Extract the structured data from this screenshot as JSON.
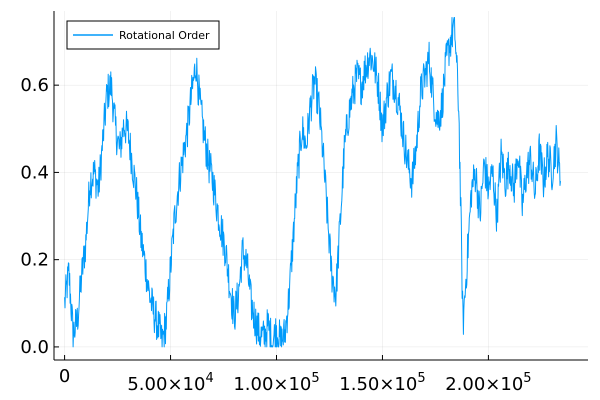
{
  "chart_data": {
    "type": "line",
    "title": "",
    "xlabel": "",
    "ylabel": "",
    "xlim": [
      -5000,
      247000
    ],
    "ylim": [
      -0.03,
      0.77
    ],
    "grid": true,
    "legend_position": "top-left",
    "x_ticks": [
      {
        "value": 0,
        "base": "0",
        "exp": ""
      },
      {
        "value": 50000,
        "base": "5.00×10",
        "exp": "4"
      },
      {
        "value": 100000,
        "base": "1.00×10",
        "exp": "5"
      },
      {
        "value": 150000,
        "base": "1.50×10",
        "exp": "5"
      },
      {
        "value": 200000,
        "base": "2.00×10",
        "exp": "5"
      }
    ],
    "y_ticks": [
      {
        "value": 0.0,
        "label": "0.0"
      },
      {
        "value": 0.2,
        "label": "0.2"
      },
      {
        "value": 0.4,
        "label": "0.4"
      },
      {
        "value": 0.6,
        "label": "0.6"
      }
    ],
    "series": [
      {
        "name": "Rotational Order",
        "color": "#009AFA",
        "x": [
          0,
          2000,
          4000,
          6000,
          8000,
          10000,
          12000,
          14000,
          16000,
          18000,
          20000,
          22000,
          24000,
          26000,
          28000,
          30000,
          32000,
          34000,
          36000,
          38000,
          40000,
          42000,
          44000,
          46000,
          48000,
          50000,
          52000,
          54000,
          56000,
          58000,
          60000,
          62000,
          64000,
          66000,
          68000,
          70000,
          72000,
          74000,
          76000,
          78000,
          80000,
          82000,
          84000,
          86000,
          88000,
          90000,
          92000,
          94000,
          96000,
          98000,
          100000,
          102000,
          104000,
          106000,
          108000,
          110000,
          112000,
          114000,
          116000,
          118000,
          120000,
          122000,
          124000,
          126000,
          128000,
          130000,
          132000,
          134000,
          136000,
          138000,
          140000,
          142000,
          144000,
          146000,
          148000,
          150000,
          152000,
          154000,
          156000,
          158000,
          160000,
          162000,
          164000,
          166000,
          168000,
          170000,
          172000,
          174000,
          176000,
          178000,
          180000,
          182000,
          184000,
          186000,
          188000,
          190000,
          192000,
          194000,
          196000,
          198000,
          200000,
          202000,
          204000,
          206000,
          208000,
          210000,
          212000,
          214000,
          216000,
          218000,
          220000,
          222000,
          224000,
          226000,
          228000,
          230000,
          232000,
          234000
        ],
        "y": [
          0.1,
          0.17,
          0.03,
          0.06,
          0.16,
          0.24,
          0.38,
          0.4,
          0.36,
          0.47,
          0.58,
          0.6,
          0.5,
          0.45,
          0.51,
          0.49,
          0.42,
          0.35,
          0.25,
          0.19,
          0.12,
          0.08,
          0.05,
          0.01,
          0.06,
          0.18,
          0.3,
          0.38,
          0.44,
          0.5,
          0.58,
          0.65,
          0.55,
          0.48,
          0.42,
          0.38,
          0.32,
          0.27,
          0.22,
          0.14,
          0.07,
          0.12,
          0.22,
          0.19,
          0.1,
          0.06,
          0.03,
          0.02,
          0.05,
          0.01,
          0.04,
          0.01,
          0.03,
          0.12,
          0.26,
          0.4,
          0.5,
          0.46,
          0.55,
          0.61,
          0.55,
          0.44,
          0.3,
          0.17,
          0.12,
          0.28,
          0.45,
          0.53,
          0.58,
          0.62,
          0.6,
          0.64,
          0.67,
          0.65,
          0.6,
          0.5,
          0.57,
          0.62,
          0.6,
          0.55,
          0.48,
          0.42,
          0.38,
          0.46,
          0.58,
          0.62,
          0.66,
          0.57,
          0.52,
          0.55,
          0.65,
          0.7,
          0.74,
          0.55,
          0.05,
          0.2,
          0.36,
          0.4,
          0.3,
          0.42,
          0.36,
          0.4,
          0.3,
          0.44,
          0.38,
          0.42,
          0.36,
          0.45,
          0.32,
          0.4,
          0.43,
          0.35,
          0.45,
          0.38,
          0.44,
          0.4,
          0.47,
          0.38
        ]
      }
    ]
  }
}
